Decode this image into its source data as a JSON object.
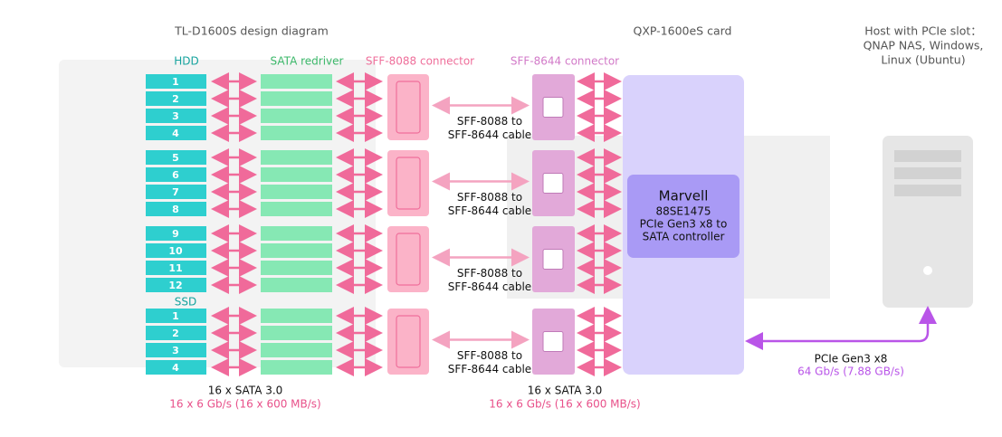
{
  "titles": {
    "enclosure": "TL-D1600S design diagram",
    "card": "QXP-1600eS card",
    "host": [
      "Host with PCIe slot：",
      "QNAP NAS, Windows,",
      "Linux (Ubuntu)"
    ]
  },
  "columns": {
    "hdd": "HDD",
    "redriver": "SATA redriver",
    "sff8088": "SFF-8088 connector",
    "sff8644": "SFF-8644 connector"
  },
  "hdd_slots": [
    "1",
    "2",
    "3",
    "4",
    "5",
    "6",
    "7",
    "8",
    "9",
    "10",
    "11",
    "12"
  ],
  "ssd_label": "SSD",
  "ssd_slots": [
    "1",
    "2",
    "3",
    "4"
  ],
  "cables": [
    [
      "SFF-8088 to",
      "SFF-8644 cable"
    ],
    [
      "SFF-8088 to",
      "SFF-8644 cable"
    ],
    [
      "SFF-8088 to",
      "SFF-8644 cable"
    ],
    [
      "SFF-8088 to",
      "SFF-8644 cable"
    ]
  ],
  "controller": [
    "Marvell",
    "88SE1475",
    "PCIe Gen3 x8 to",
    "SATA controller"
  ],
  "footers": {
    "left": [
      "16 x SATA 3.0",
      "16 x 6 Gb/s (16 x 600 MB/s)"
    ],
    "middle": [
      "16 x SATA 3.0",
      "16 x 6 Gb/s (16 x 600 MB/s)"
    ],
    "link": [
      "PCIe Gen3 x8",
      "64 Gb/s (7.88 GB/s)"
    ]
  }
}
